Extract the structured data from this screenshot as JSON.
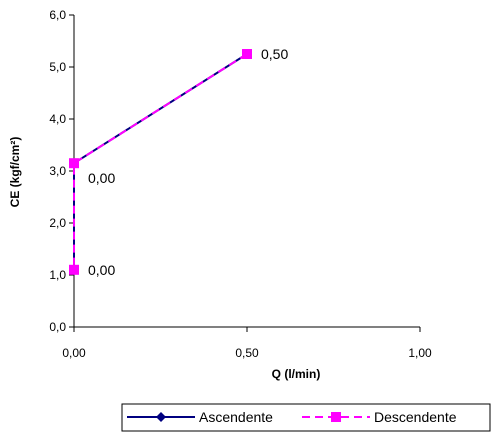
{
  "chart_data": {
    "type": "scatter",
    "xlabel": "Q (l/min)",
    "ylabel": "CE (kgf/cm²)",
    "xlim": [
      0,
      1
    ],
    "ylim": [
      0,
      6
    ],
    "x_ticks": [
      0,
      0.5,
      1
    ],
    "x_tick_labels": [
      "0,00",
      "0,50",
      "1,00"
    ],
    "y_ticks": [
      0,
      1,
      2,
      3,
      4,
      5,
      6
    ],
    "y_tick_labels": [
      "0,0",
      "1,0",
      "2,0",
      "3,0",
      "4,0",
      "5,0",
      "6,0"
    ],
    "grid": false,
    "legend_position": "bottom",
    "series": [
      {
        "name": "Ascendente",
        "color": "#000080",
        "line_style": "solid",
        "marker": "diamond",
        "points": [
          {
            "x": 0.0,
            "y": 1.1
          },
          {
            "x": 0.0,
            "y": 3.15
          },
          {
            "x": 0.5,
            "y": 5.25
          }
        ]
      },
      {
        "name": "Descendente",
        "color": "#FF00FF",
        "line_style": "dashed",
        "marker": "square",
        "points": [
          {
            "x": 0.5,
            "y": 5.25
          },
          {
            "x": 0.0,
            "y": 3.15
          },
          {
            "x": 0.0,
            "y": 1.1
          }
        ]
      }
    ],
    "data_labels": [
      {
        "x": 0.5,
        "y": 5.25,
        "text": "0,50"
      },
      {
        "x": 0.0,
        "y": 3.15,
        "text": "0,00"
      },
      {
        "x": 0.0,
        "y": 1.1,
        "text": "0,00"
      }
    ]
  }
}
